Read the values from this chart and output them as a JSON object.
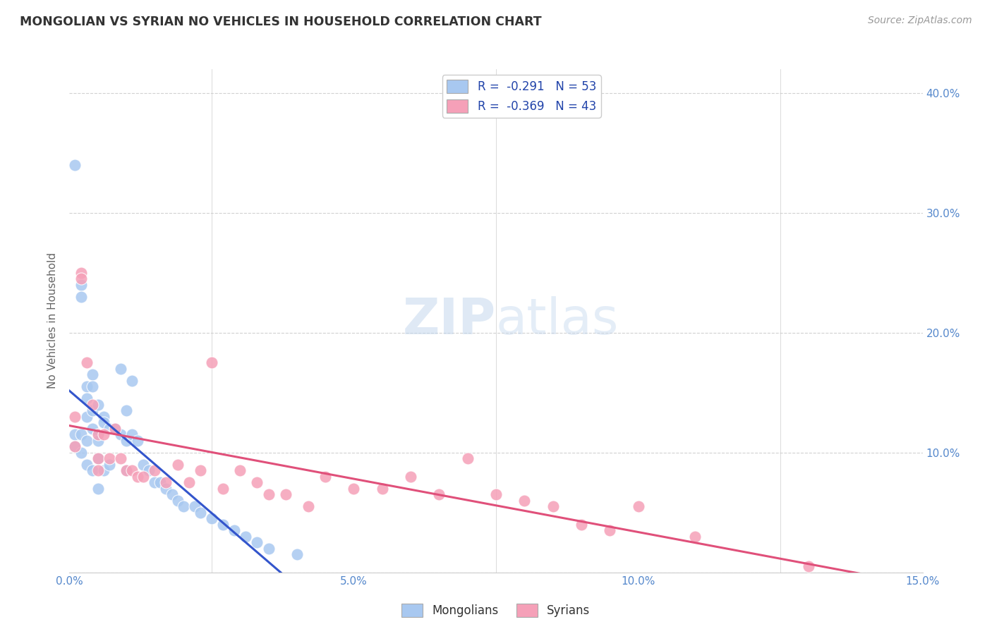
{
  "title": "MONGOLIAN VS SYRIAN NO VEHICLES IN HOUSEHOLD CORRELATION CHART",
  "source": "Source: ZipAtlas.com",
  "ylabel": "No Vehicles in Household",
  "xlim": [
    0.0,
    0.15
  ],
  "ylim": [
    0.0,
    0.42
  ],
  "mongolian_color": "#a8c8f0",
  "syrian_color": "#f5a0b8",
  "mongolian_line_color": "#3355cc",
  "syrian_line_color": "#e0507a",
  "mongolian_r": -0.291,
  "mongolian_n": 53,
  "syrian_r": -0.369,
  "syrian_n": 43,
  "background_color": "#ffffff",
  "grid_color": "#cccccc",
  "mongolian_x": [
    0.001,
    0.001,
    0.001,
    0.002,
    0.002,
    0.002,
    0.002,
    0.003,
    0.003,
    0.003,
    0.003,
    0.003,
    0.004,
    0.004,
    0.004,
    0.004,
    0.004,
    0.005,
    0.005,
    0.005,
    0.005,
    0.005,
    0.006,
    0.006,
    0.006,
    0.007,
    0.007,
    0.008,
    0.009,
    0.009,
    0.01,
    0.01,
    0.01,
    0.011,
    0.011,
    0.012,
    0.013,
    0.014,
    0.015,
    0.016,
    0.017,
    0.018,
    0.019,
    0.02,
    0.022,
    0.023,
    0.025,
    0.027,
    0.029,
    0.031,
    0.033,
    0.035,
    0.04
  ],
  "mongolian_y": [
    0.34,
    0.115,
    0.105,
    0.24,
    0.23,
    0.115,
    0.1,
    0.155,
    0.145,
    0.13,
    0.11,
    0.09,
    0.165,
    0.155,
    0.135,
    0.12,
    0.085,
    0.14,
    0.115,
    0.11,
    0.095,
    0.07,
    0.13,
    0.125,
    0.085,
    0.12,
    0.09,
    0.12,
    0.17,
    0.115,
    0.135,
    0.11,
    0.085,
    0.16,
    0.115,
    0.11,
    0.09,
    0.085,
    0.075,
    0.075,
    0.07,
    0.065,
    0.06,
    0.055,
    0.055,
    0.05,
    0.045,
    0.04,
    0.035,
    0.03,
    0.025,
    0.02,
    0.015
  ],
  "syrian_x": [
    0.001,
    0.001,
    0.002,
    0.002,
    0.003,
    0.004,
    0.005,
    0.005,
    0.005,
    0.006,
    0.007,
    0.008,
    0.009,
    0.01,
    0.011,
    0.012,
    0.013,
    0.015,
    0.017,
    0.019,
    0.021,
    0.023,
    0.025,
    0.027,
    0.03,
    0.033,
    0.035,
    0.038,
    0.042,
    0.045,
    0.05,
    0.055,
    0.06,
    0.065,
    0.07,
    0.075,
    0.08,
    0.085,
    0.09,
    0.095,
    0.1,
    0.11,
    0.13
  ],
  "syrian_y": [
    0.13,
    0.105,
    0.25,
    0.245,
    0.175,
    0.14,
    0.115,
    0.095,
    0.085,
    0.115,
    0.095,
    0.12,
    0.095,
    0.085,
    0.085,
    0.08,
    0.08,
    0.085,
    0.075,
    0.09,
    0.075,
    0.085,
    0.175,
    0.07,
    0.085,
    0.075,
    0.065,
    0.065,
    0.055,
    0.08,
    0.07,
    0.07,
    0.08,
    0.065,
    0.095,
    0.065,
    0.06,
    0.055,
    0.04,
    0.035,
    0.055,
    0.03,
    0.005
  ]
}
